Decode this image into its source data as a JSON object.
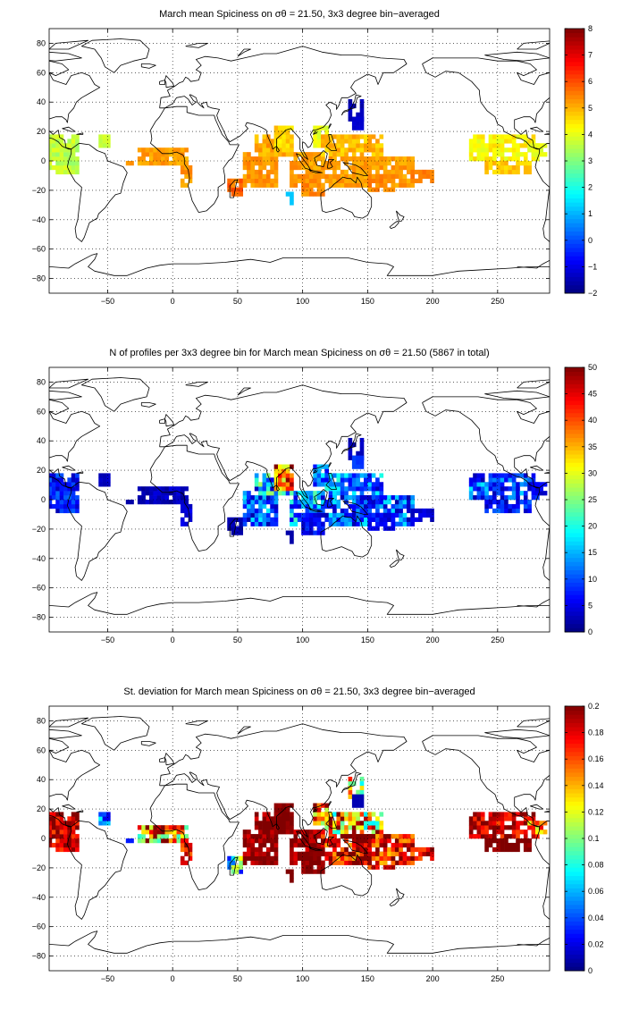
{
  "chart_data": [
    {
      "type": "heatmap",
      "title": "March mean Spiciness on σθ = 21.50, 3x3 degree bin−averaged",
      "xlim": [
        -95,
        290
      ],
      "ylim": [
        -90,
        90
      ],
      "xticks": [
        -50,
        0,
        50,
        100,
        150,
        200,
        250
      ],
      "yticks": [
        -80,
        -60,
        -40,
        -20,
        0,
        20,
        40,
        60,
        80
      ],
      "grid": true,
      "colorbar": {
        "min": -2,
        "max": 8,
        "ticks": [
          -2,
          -1,
          0,
          1,
          2,
          3,
          4,
          5,
          6,
          7,
          8
        ],
        "colormap": "jet"
      },
      "regions": [
        {
          "x0": -95,
          "x1": -74,
          "y0": -8,
          "y1": 16,
          "value": 3.6,
          "jit": 0.4
        },
        {
          "x0": -57,
          "x1": -50,
          "y0": 10,
          "y1": 16,
          "value": 3.7,
          "jit": 0.2
        },
        {
          "x0": -25,
          "x1": 12,
          "y0": -3,
          "y1": 7,
          "value": 5.2,
          "jit": 0.3
        },
        {
          "x0": -34,
          "x1": -30,
          "y0": -3,
          "y1": 0,
          "value": 5.3,
          "jit": 0.1
        },
        {
          "x0": 7,
          "x1": 13,
          "y0": -16,
          "y1": -2,
          "value": 5.3,
          "jit": 0.3
        },
        {
          "x0": 42,
          "x1": 52,
          "y0": -22,
          "y1": -13,
          "value": 5.7,
          "jit": 0.4
        },
        {
          "x0": 55,
          "x1": 80,
          "y0": -16,
          "y1": 5,
          "value": 5.3,
          "jit": 0.3
        },
        {
          "x0": 65,
          "x1": 90,
          "y0": 5,
          "y1": 16,
          "value": 5.1,
          "jit": 0.4
        },
        {
          "x0": 80,
          "x1": 93,
          "y0": 7,
          "y1": 22,
          "value": 4.6,
          "jit": 0.4
        },
        {
          "x0": 90,
          "x1": 115,
          "y0": -16,
          "y1": 6,
          "value": 5.2,
          "jit": 0.3
        },
        {
          "x0": 100,
          "x1": 115,
          "y0": -22,
          "y1": -10,
          "value": 5.4,
          "jit": 0.3
        },
        {
          "x0": 110,
          "x1": 120,
          "y0": 10,
          "y1": 22,
          "value": 4.0,
          "jit": 0.3
        },
        {
          "x0": 115,
          "x1": 160,
          "y0": 0,
          "y1": 16,
          "value": 4.9,
          "jit": 0.4
        },
        {
          "x0": 118,
          "x1": 185,
          "y0": -16,
          "y1": 3,
          "value": 5.2,
          "jit": 0.3
        },
        {
          "x0": 150,
          "x1": 170,
          "y0": -20,
          "y1": -10,
          "value": 5.4,
          "jit": 0.3
        },
        {
          "x0": 185,
          "x1": 200,
          "y0": -15,
          "y1": -8,
          "value": 5.5,
          "jit": 0.2
        },
        {
          "x0": 137,
          "x1": 145,
          "y0": 28,
          "y1": 40,
          "value": -1.5,
          "jit": 0.2
        },
        {
          "x0": 140,
          "x1": 145,
          "y0": 22,
          "y1": 28,
          "value": -1.2,
          "jit": 0.1
        },
        {
          "x0": 88,
          "x1": 93,
          "y0": -28,
          "y1": -23,
          "value": 1.2,
          "jit": 0.0
        },
        {
          "x0": 230,
          "x1": 280,
          "y0": 0,
          "y1": 16,
          "value": 4.3,
          "jit": 0.4
        },
        {
          "x0": 240,
          "x1": 275,
          "y0": -8,
          "y1": 0,
          "value": 4.8,
          "jit": 0.3
        },
        {
          "x0": 275,
          "x1": 288,
          "y0": 3,
          "y1": 10,
          "value": 4.0,
          "jit": 0.2
        }
      ]
    },
    {
      "type": "heatmap",
      "title": "N of profiles per 3x3 degree bin for March mean Spiciness on σθ = 21.50 (5867 in total)",
      "xlim": [
        -95,
        290
      ],
      "ylim": [
        -90,
        90
      ],
      "xticks": [
        -50,
        0,
        50,
        100,
        150,
        200,
        250
      ],
      "yticks": [
        -80,
        -60,
        -40,
        -20,
        0,
        20,
        40,
        60,
        80
      ],
      "grid": true,
      "colorbar": {
        "min": 0,
        "max": 50,
        "ticks": [
          0,
          5,
          10,
          15,
          20,
          25,
          30,
          35,
          40,
          45,
          50
        ],
        "colormap": "jet"
      },
      "regions": [
        {
          "x0": -95,
          "x1": -74,
          "y0": -8,
          "y1": 16,
          "value": 7,
          "jit": 5
        },
        {
          "x0": -57,
          "x1": -50,
          "y0": 10,
          "y1": 16,
          "value": 3,
          "jit": 1
        },
        {
          "x0": -25,
          "x1": 12,
          "y0": -3,
          "y1": 7,
          "value": 3,
          "jit": 2
        },
        {
          "x0": -34,
          "x1": -30,
          "y0": -3,
          "y1": 0,
          "value": 2,
          "jit": 0
        },
        {
          "x0": 7,
          "x1": 13,
          "y0": -16,
          "y1": -2,
          "value": 4,
          "jit": 2
        },
        {
          "x0": 42,
          "x1": 52,
          "y0": -22,
          "y1": -13,
          "value": 2,
          "jit": 1
        },
        {
          "x0": 55,
          "x1": 80,
          "y0": -16,
          "y1": 5,
          "value": 10,
          "jit": 8
        },
        {
          "x0": 65,
          "x1": 90,
          "y0": 5,
          "y1": 16,
          "value": 15,
          "jit": 12
        },
        {
          "x0": 80,
          "x1": 93,
          "y0": 7,
          "y1": 22,
          "value": 40,
          "jit": 12
        },
        {
          "x0": 90,
          "x1": 115,
          "y0": -16,
          "y1": 6,
          "value": 14,
          "jit": 10
        },
        {
          "x0": 100,
          "x1": 115,
          "y0": -22,
          "y1": -10,
          "value": 6,
          "jit": 3
        },
        {
          "x0": 110,
          "x1": 120,
          "y0": 10,
          "y1": 22,
          "value": 12,
          "jit": 8
        },
        {
          "x0": 115,
          "x1": 160,
          "y0": 0,
          "y1": 16,
          "value": 12,
          "jit": 9
        },
        {
          "x0": 118,
          "x1": 185,
          "y0": -16,
          "y1": 3,
          "value": 10,
          "jit": 8
        },
        {
          "x0": 150,
          "x1": 170,
          "y0": -20,
          "y1": -10,
          "value": 6,
          "jit": 3
        },
        {
          "x0": 185,
          "x1": 200,
          "y0": -15,
          "y1": -8,
          "value": 4,
          "jit": 2
        },
        {
          "x0": 137,
          "x1": 145,
          "y0": 28,
          "y1": 40,
          "value": 3,
          "jit": 1
        },
        {
          "x0": 140,
          "x1": 145,
          "y0": 22,
          "y1": 28,
          "value": 9,
          "jit": 1
        },
        {
          "x0": 88,
          "x1": 93,
          "y0": -28,
          "y1": -23,
          "value": 2,
          "jit": 0
        },
        {
          "x0": 230,
          "x1": 280,
          "y0": 0,
          "y1": 16,
          "value": 10,
          "jit": 8
        },
        {
          "x0": 240,
          "x1": 275,
          "y0": -8,
          "y1": 0,
          "value": 7,
          "jit": 5
        },
        {
          "x0": 275,
          "x1": 288,
          "y0": 3,
          "y1": 10,
          "value": 5,
          "jit": 2
        }
      ]
    },
    {
      "type": "heatmap",
      "title": "St. deviation for March mean Spiciness on σθ = 21.50, 3x3 degree bin−averaged",
      "xlim": [
        -95,
        290
      ],
      "ylim": [
        -90,
        90
      ],
      "xticks": [
        -50,
        0,
        50,
        100,
        150,
        200,
        250
      ],
      "yticks": [
        -80,
        -60,
        -40,
        -20,
        0,
        20,
        40,
        60,
        80
      ],
      "grid": true,
      "colorbar": {
        "min": 0,
        "max": 0.2,
        "ticks": [
          0,
          0.02,
          0.04,
          0.06,
          0.08,
          0.1,
          0.12,
          0.14,
          0.16,
          0.18,
          0.2
        ],
        "colormap": "jet"
      },
      "regions": [
        {
          "x0": -95,
          "x1": -74,
          "y0": -8,
          "y1": 16,
          "value": 0.19,
          "jit": 0.03
        },
        {
          "x0": -57,
          "x1": -50,
          "y0": 10,
          "y1": 16,
          "value": 0.05,
          "jit": 0.03
        },
        {
          "x0": -25,
          "x1": 12,
          "y0": -3,
          "y1": 7,
          "value": 0.15,
          "jit": 0.07
        },
        {
          "x0": -34,
          "x1": -30,
          "y0": -3,
          "y1": 0,
          "value": 0.03,
          "jit": 0.0
        },
        {
          "x0": 7,
          "x1": 13,
          "y0": -16,
          "y1": -2,
          "value": 0.18,
          "jit": 0.03
        },
        {
          "x0": 42,
          "x1": 52,
          "y0": -22,
          "y1": -13,
          "value": 0.08,
          "jit": 0.06
        },
        {
          "x0": 55,
          "x1": 80,
          "y0": -16,
          "y1": 5,
          "value": 0.2,
          "jit": 0.02
        },
        {
          "x0": 65,
          "x1": 90,
          "y0": 5,
          "y1": 16,
          "value": 0.2,
          "jit": 0.02
        },
        {
          "x0": 80,
          "x1": 93,
          "y0": 7,
          "y1": 22,
          "value": 0.2,
          "jit": 0.01
        },
        {
          "x0": 90,
          "x1": 115,
          "y0": -16,
          "y1": 6,
          "value": 0.2,
          "jit": 0.02
        },
        {
          "x0": 100,
          "x1": 115,
          "y0": -22,
          "y1": -10,
          "value": 0.2,
          "jit": 0.01
        },
        {
          "x0": 110,
          "x1": 120,
          "y0": 10,
          "y1": 22,
          "value": 0.15,
          "jit": 0.06
        },
        {
          "x0": 115,
          "x1": 160,
          "y0": 0,
          "y1": 16,
          "value": 0.14,
          "jit": 0.07
        },
        {
          "x0": 118,
          "x1": 185,
          "y0": -16,
          "y1": 3,
          "value": 0.18,
          "jit": 0.04
        },
        {
          "x0": 150,
          "x1": 170,
          "y0": -20,
          "y1": -10,
          "value": 0.17,
          "jit": 0.04
        },
        {
          "x0": 185,
          "x1": 200,
          "y0": -15,
          "y1": -8,
          "value": 0.18,
          "jit": 0.03
        },
        {
          "x0": 137,
          "x1": 145,
          "y0": 28,
          "y1": 40,
          "value": 0.12,
          "jit": 0.05
        },
        {
          "x0": 140,
          "x1": 145,
          "y0": 22,
          "y1": 28,
          "value": 0.01,
          "jit": 0.0
        },
        {
          "x0": 88,
          "x1": 93,
          "y0": -28,
          "y1": -23,
          "value": 0.2,
          "jit": 0.0
        },
        {
          "x0": 230,
          "x1": 280,
          "y0": 0,
          "y1": 16,
          "value": 0.19,
          "jit": 0.03
        },
        {
          "x0": 240,
          "x1": 275,
          "y0": -8,
          "y1": 0,
          "value": 0.2,
          "jit": 0.01
        },
        {
          "x0": 275,
          "x1": 288,
          "y0": 3,
          "y1": 10,
          "value": 0.14,
          "jit": 0.04
        }
      ]
    }
  ]
}
